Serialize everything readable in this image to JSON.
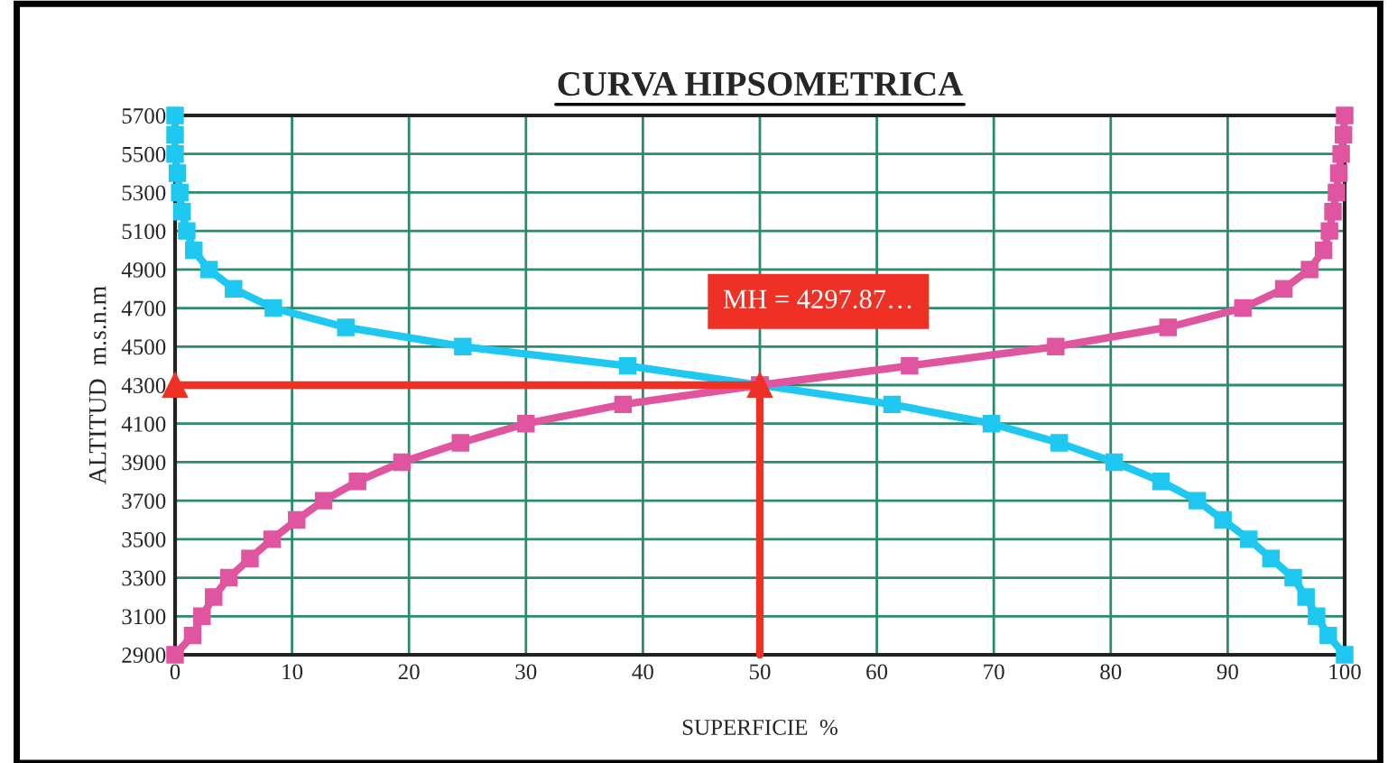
{
  "chart_data": {
    "type": "line",
    "title": "CURVA HIPSOMETRICA",
    "xlabel": "SUPERFICIE  %",
    "ylabel": "ALTITUD  m.s.n.m",
    "series": [
      {
        "color": "#1ec8f0",
        "marker": "square",
        "x": [
          0,
          0,
          0,
          0.2,
          0.4,
          0.6,
          1.0,
          1.6,
          2.9,
          5.0,
          8.4,
          14.6,
          24.6,
          38.7,
          50,
          61.3,
          69.8,
          75.6,
          80.3,
          84.3,
          87.4,
          89.6,
          91.8,
          93.7,
          95.6,
          96.7,
          97.6,
          98.6,
          100
        ],
        "values": [
          5700,
          5600,
          5500,
          5400,
          5300,
          5200,
          5100,
          5000,
          4900,
          4800,
          4700,
          4600,
          4500,
          4400,
          4300,
          4200,
          4100,
          4000,
          3900,
          3800,
          3700,
          3600,
          3500,
          3400,
          3300,
          3200,
          3100,
          3000,
          2900
        ]
      },
      {
        "color": "#e0559f",
        "marker": "square",
        "x": [
          0,
          1.5,
          2.3,
          3.3,
          4.6,
          6.4,
          8.3,
          10.4,
          12.7,
          15.6,
          19.4,
          24.4,
          30.0,
          38.3,
          50,
          62.8,
          75.3,
          84.9,
          91.3,
          94.8,
          97.0,
          98.2,
          98.7,
          99.0,
          99.3,
          99.5,
          99.7,
          99.9,
          100
        ],
        "values": [
          2900,
          3000,
          3100,
          3200,
          3300,
          3400,
          3500,
          3600,
          3700,
          3800,
          3900,
          4000,
          4100,
          4200,
          4300,
          4400,
          4500,
          4600,
          4700,
          4800,
          4900,
          5000,
          5100,
          5200,
          5300,
          5400,
          5500,
          5600,
          5700
        ]
      },
      {
        "color": "#ee3124",
        "marker": "triangle",
        "x": [
          0,
          50,
          50
        ],
        "values": [
          4300,
          4300,
          2900
        ]
      }
    ],
    "annotations": [
      "MH = 4297.87…"
    ],
    "xlim": [
      0,
      100
    ],
    "xticks": [
      0,
      10,
      20,
      30,
      40,
      50,
      60,
      70,
      80,
      90,
      100
    ],
    "ylim": [
      2900,
      5700
    ],
    "yticks": [
      2900,
      3100,
      3300,
      3500,
      3700,
      3900,
      4100,
      4300,
      4500,
      4700,
      4900,
      5100,
      5300,
      5500,
      5700
    ],
    "grid": true,
    "legend": false
  }
}
